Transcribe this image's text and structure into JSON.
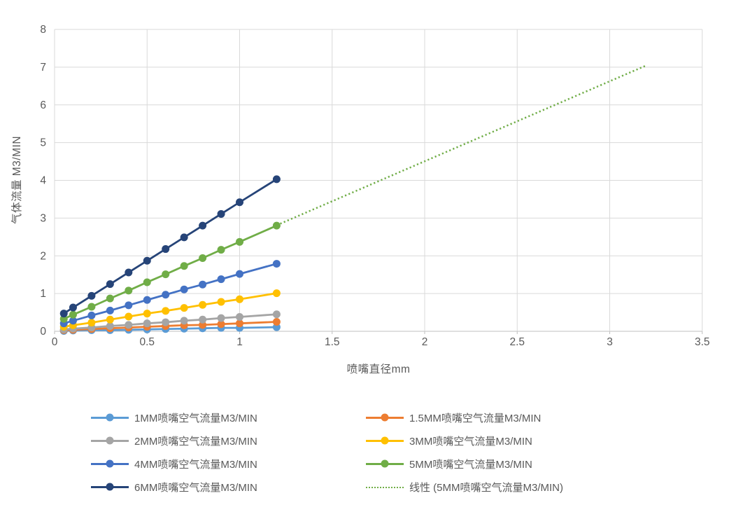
{
  "chart_data": {
    "type": "line",
    "title": "",
    "xlabel": "喷嘴直径mm",
    "ylabel": "气体流量 M3/MIN",
    "xlim": [
      0,
      3.5
    ],
    "ylim": [
      0,
      8
    ],
    "x_ticks": [
      0,
      0.5,
      1,
      1.5,
      2,
      2.5,
      3,
      3.5
    ],
    "y_ticks": [
      0,
      1,
      2,
      3,
      4,
      5,
      6,
      7,
      8
    ],
    "grid": true,
    "legend_position": "bottom",
    "x": [
      0.05,
      0.1,
      0.2,
      0.3,
      0.4,
      0.5,
      0.6,
      0.7,
      0.8,
      0.9,
      1.0,
      1.2
    ],
    "series": [
      {
        "name": "1MM喷嘴空气流量M3/MIN",
        "color": "#5B9BD5",
        "values": [
          0.01,
          0.02,
          0.03,
          0.03,
          0.04,
          0.05,
          0.06,
          0.07,
          0.08,
          0.09,
          0.09,
          0.11
        ]
      },
      {
        "name": "1.5MM喷嘴空气流量M3/MIN",
        "color": "#ED7D31",
        "values": [
          0.03,
          0.04,
          0.06,
          0.08,
          0.1,
          0.12,
          0.14,
          0.16,
          0.17,
          0.19,
          0.21,
          0.25
        ]
      },
      {
        "name": "2MM喷嘴空气流量M3/MIN",
        "color": "#A5A5A5",
        "values": [
          0.05,
          0.07,
          0.1,
          0.14,
          0.17,
          0.21,
          0.24,
          0.28,
          0.31,
          0.35,
          0.38,
          0.45
        ]
      },
      {
        "name": "3MM喷嘴空气流量M3/MIN",
        "color": "#FFC000",
        "values": [
          0.12,
          0.16,
          0.23,
          0.31,
          0.39,
          0.47,
          0.54,
          0.62,
          0.7,
          0.78,
          0.85,
          1.01
        ]
      },
      {
        "name": "4MM喷嘴空气流量M3/MIN",
        "color": "#4472C4",
        "values": [
          0.21,
          0.28,
          0.42,
          0.55,
          0.69,
          0.83,
          0.97,
          1.11,
          1.24,
          1.38,
          1.52,
          1.79
        ]
      },
      {
        "name": "5MM喷嘴空气流量M3/MIN",
        "color": "#70AD47",
        "values": [
          0.33,
          0.44,
          0.65,
          0.87,
          1.08,
          1.3,
          1.51,
          1.73,
          1.94,
          2.16,
          2.37,
          2.8
        ]
      },
      {
        "name": "6MM喷嘴空气流量M3/MIN",
        "color": "#264478",
        "values": [
          0.47,
          0.63,
          0.94,
          1.25,
          1.56,
          1.87,
          2.18,
          2.49,
          2.8,
          3.11,
          3.42,
          4.03
        ]
      }
    ],
    "trendline": {
      "name": "线性 (5MM喷嘴空气流量M3/MIN)",
      "color": "#70AD47",
      "style": "dotted",
      "x_start": 1.2,
      "y_start": 2.81,
      "x_end": 3.2,
      "y_end": 7.05
    }
  },
  "style_colors": {
    "grid": "#D9D9D9",
    "axis": "#BFBFBF",
    "tick_text": "#595959",
    "background": "#FFFFFF"
  }
}
